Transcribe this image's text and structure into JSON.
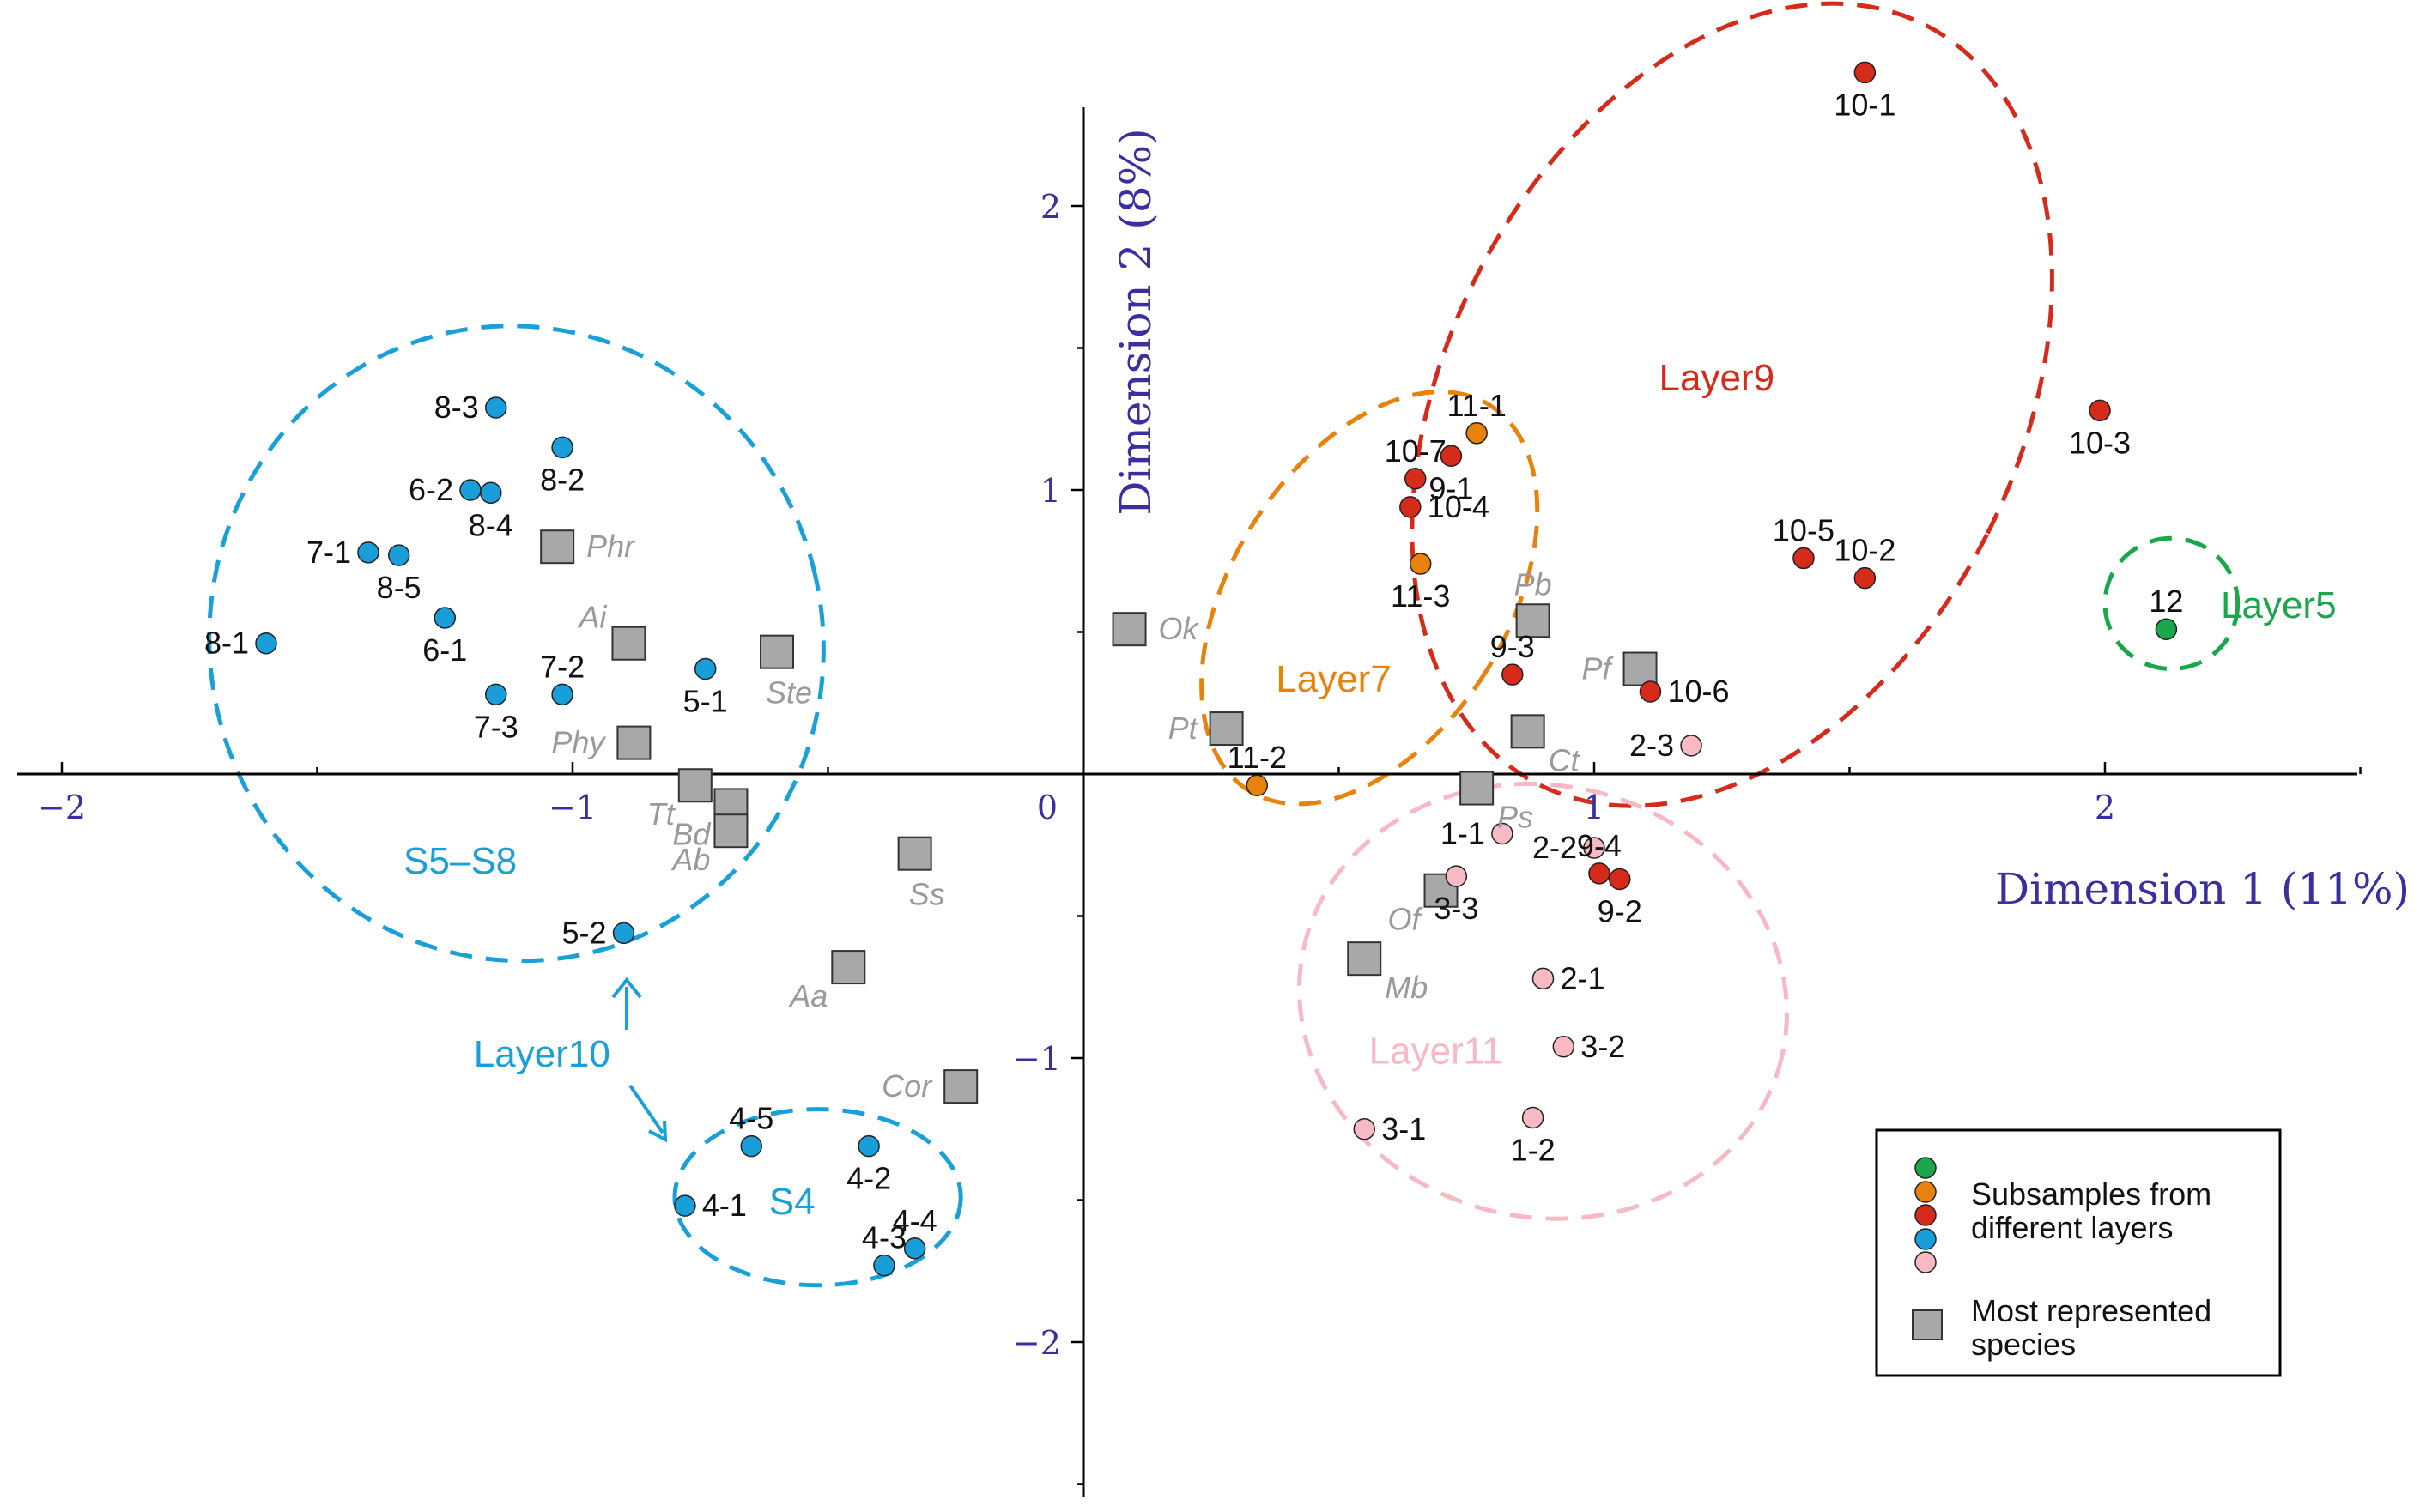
{
  "chart_data": {
    "type": "scatter",
    "title": "",
    "xlabel": "Dimension 1 (11%)",
    "ylabel": "Dimension 2 (8%)",
    "xlim": [
      -2.1,
      2.5
    ],
    "ylim": [
      -2.5,
      2.35
    ],
    "x_ticks": [
      {
        "v": -2,
        "label": "−2"
      },
      {
        "v": -1,
        "label": "−1"
      },
      {
        "v": 0,
        "label": "0"
      },
      {
        "v": 1,
        "label": "1"
      },
      {
        "v": 2,
        "label": "2"
      }
    ],
    "y_ticks": [
      {
        "v": -2,
        "label": "−2"
      },
      {
        "v": -1,
        "label": "−1"
      },
      {
        "v": 1,
        "label": "1"
      },
      {
        "v": 2,
        "label": "2"
      }
    ],
    "colors": {
      "green": "#1aa64a",
      "orange": "#e8820c",
      "red": "#d62a1a",
      "blue": "#1a9ed9",
      "pink": "#f7b9c3",
      "square": "#a8a8a8"
    },
    "subsamples": [
      {
        "id": "8-3",
        "x": -1.15,
        "y": 1.29,
        "layer": "blue",
        "pos": "left"
      },
      {
        "id": "8-2",
        "x": -1.02,
        "y": 1.15,
        "layer": "blue",
        "pos": "below"
      },
      {
        "id": "6-2",
        "x": -1.2,
        "y": 1.0,
        "layer": "blue",
        "pos": "left"
      },
      {
        "id": "8-4",
        "x": -1.16,
        "y": 0.99,
        "layer": "blue",
        "pos": "below"
      },
      {
        "id": "7-1",
        "x": -1.4,
        "y": 0.78,
        "layer": "blue",
        "pos": "left"
      },
      {
        "id": "8-5",
        "x": -1.34,
        "y": 0.77,
        "layer": "blue",
        "pos": "below"
      },
      {
        "id": "6-1",
        "x": -1.25,
        "y": 0.55,
        "layer": "blue",
        "pos": "below"
      },
      {
        "id": "8-1",
        "x": -1.6,
        "y": 0.46,
        "layer": "blue",
        "pos": "left"
      },
      {
        "id": "7-2",
        "x": -1.02,
        "y": 0.28,
        "layer": "blue",
        "pos": "above"
      },
      {
        "id": "7-3",
        "x": -1.15,
        "y": 0.28,
        "layer": "blue",
        "pos": "below"
      },
      {
        "id": "5-1",
        "x": -0.74,
        "y": 0.37,
        "layer": "blue",
        "pos": "below"
      },
      {
        "id": "5-2",
        "x": -0.9,
        "y": -0.56,
        "layer": "blue",
        "pos": "left"
      },
      {
        "id": "4-5",
        "x": -0.65,
        "y": -1.31,
        "layer": "blue",
        "pos": "above"
      },
      {
        "id": "4-2",
        "x": -0.42,
        "y": -1.31,
        "layer": "blue",
        "pos": "below"
      },
      {
        "id": "4-1",
        "x": -0.78,
        "y": -1.52,
        "layer": "blue",
        "pos": "right"
      },
      {
        "id": "4-4",
        "x": -0.33,
        "y": -1.67,
        "layer": "blue",
        "pos": "above"
      },
      {
        "id": "4-3",
        "x": -0.39,
        "y": -1.73,
        "layer": "blue",
        "pos": "above"
      },
      {
        "id": "10-1",
        "x": 1.53,
        "y": 2.47,
        "layer": "red",
        "pos": "below"
      },
      {
        "id": "10-3",
        "x": 1.99,
        "y": 1.28,
        "layer": "red",
        "pos": "below"
      },
      {
        "id": "10-5",
        "x": 1.41,
        "y": 0.76,
        "layer": "red",
        "pos": "above"
      },
      {
        "id": "10-2",
        "x": 1.53,
        "y": 0.69,
        "layer": "red",
        "pos": "above"
      },
      {
        "id": "10-7",
        "x": 0.65,
        "y": 1.04,
        "layer": "red",
        "pos": "above"
      },
      {
        "id": "9-1",
        "x": 0.72,
        "y": 1.12,
        "layer": "red",
        "pos": "below"
      },
      {
        "id": "10-4",
        "x": 0.64,
        "y": 0.94,
        "layer": "red",
        "pos": "right"
      },
      {
        "id": "9-3",
        "x": 0.84,
        "y": 0.35,
        "layer": "red",
        "pos": "above"
      },
      {
        "id": "10-6",
        "x": 1.11,
        "y": 0.29,
        "layer": "red",
        "pos": "right"
      },
      {
        "id": "9-4",
        "x": 1.01,
        "y": -0.35,
        "layer": "red",
        "pos": "above"
      },
      {
        "id": "9-2",
        "x": 1.05,
        "y": -0.37,
        "layer": "red",
        "pos": "below"
      },
      {
        "id": "11-1",
        "x": 0.77,
        "y": 1.2,
        "layer": "orange",
        "pos": "above"
      },
      {
        "id": "11-3",
        "x": 0.66,
        "y": 0.74,
        "layer": "orange",
        "pos": "below"
      },
      {
        "id": "11-2",
        "x": 0.34,
        "y": -0.04,
        "layer": "orange",
        "pos": "above"
      },
      {
        "id": "12",
        "x": 2.12,
        "y": 0.51,
        "layer": "green",
        "pos": "above"
      },
      {
        "id": "2-3",
        "x": 1.19,
        "y": 0.1,
        "layer": "pink",
        "pos": "left"
      },
      {
        "id": "1-1",
        "x": 0.82,
        "y": -0.21,
        "layer": "pink",
        "pos": "left"
      },
      {
        "id": "2-2",
        "x": 1.0,
        "y": -0.26,
        "layer": "pink",
        "pos": "left"
      },
      {
        "id": "3-3",
        "x": 0.73,
        "y": -0.36,
        "layer": "pink",
        "pos": "below"
      },
      {
        "id": "2-1",
        "x": 0.9,
        "y": -0.72,
        "layer": "pink",
        "pos": "right"
      },
      {
        "id": "3-2",
        "x": 0.94,
        "y": -0.96,
        "layer": "pink",
        "pos": "right"
      },
      {
        "id": "3-1",
        "x": 0.55,
        "y": -1.25,
        "layer": "pink",
        "pos": "right"
      },
      {
        "id": "1-2",
        "x": 0.88,
        "y": -1.21,
        "layer": "pink",
        "pos": "below"
      }
    ],
    "species": [
      {
        "id": "Phr",
        "x": -1.03,
        "y": 0.8,
        "pos": "right"
      },
      {
        "id": "Ai",
        "x": -0.89,
        "y": 0.46,
        "pos": "ul"
      },
      {
        "id": "Ste",
        "x": -0.6,
        "y": 0.43,
        "pos": "below"
      },
      {
        "id": "Phy",
        "x": -0.88,
        "y": 0.11,
        "pos": "left"
      },
      {
        "id": "Tt",
        "x": -0.76,
        "y": -0.04,
        "pos": "below-left"
      },
      {
        "id": "Bd",
        "x": -0.69,
        "y": -0.11,
        "pos": "below-left"
      },
      {
        "id": "Ab",
        "x": -0.69,
        "y": -0.2,
        "pos": "below-left"
      },
      {
        "id": "Ss",
        "x": -0.33,
        "y": -0.28,
        "pos": "below"
      },
      {
        "id": "Aa",
        "x": -0.46,
        "y": -0.68,
        "pos": "below-left"
      },
      {
        "id": "Cor",
        "x": -0.24,
        "y": -1.1,
        "pos": "left"
      },
      {
        "id": "Ok",
        "x": 0.09,
        "y": 0.51,
        "pos": "right"
      },
      {
        "id": "Pt",
        "x": 0.28,
        "y": 0.16,
        "pos": "left"
      },
      {
        "id": "Pb",
        "x": 0.88,
        "y": 0.54,
        "pos": "above"
      },
      {
        "id": "Pf",
        "x": 1.09,
        "y": 0.37,
        "pos": "left"
      },
      {
        "id": "Ct",
        "x": 0.87,
        "y": 0.15,
        "pos": "below-right"
      },
      {
        "id": "Ps",
        "x": 0.77,
        "y": -0.05,
        "pos": "below-right"
      },
      {
        "id": "Of",
        "x": 0.7,
        "y": -0.41,
        "pos": "below-left"
      },
      {
        "id": "Mb",
        "x": 0.55,
        "y": -0.65,
        "pos": "below-right"
      }
    ],
    "groups": [
      {
        "name": "S5–S8",
        "color": "#1aa0d8",
        "cx": -1.11,
        "cy": 0.46,
        "rx": 0.6,
        "ry": 1.12,
        "rot": -14,
        "lx": -1.22,
        "ly": -0.35
      },
      {
        "name": "S4",
        "color": "#1aa0d8",
        "cx": -0.52,
        "cy": -1.49,
        "rx": 0.28,
        "ry": 0.31,
        "rot": 0,
        "lx": -0.57,
        "ly": -1.55
      },
      {
        "name": "Layer7",
        "color": "#e8820c",
        "cx": 0.56,
        "cy": 0.62,
        "rx": 0.27,
        "ry": 0.8,
        "rot": 32,
        "lx": 0.49,
        "ly": 0.29
      },
      {
        "name": "Layer9",
        "color": "#d62a1a",
        "cx": 1.27,
        "cy": 1.3,
        "rx": 0.56,
        "ry": 1.5,
        "rot": 27,
        "lx": 1.24,
        "ly": 1.35
      },
      {
        "name": "Layer5",
        "color": "#1aa64a",
        "cx": 2.13,
        "cy": 0.6,
        "rx": 0.13,
        "ry": 0.23,
        "rot": 0,
        "lx": 2.34,
        "ly": 0.55
      },
      {
        "name": "Layer11",
        "color": "#f7b9c3",
        "cx": 0.9,
        "cy": -0.8,
        "rx": 0.48,
        "ry": 0.76,
        "rot": 13,
        "lx": 0.69,
        "ly": -1.02
      }
    ],
    "layer10": {
      "label": "Layer10",
      "color": "#1aa0d8",
      "lx": -1.06,
      "ly": -1.03
    },
    "legend": {
      "subsamples_label_line1": "Subsamples from",
      "subsamples_label_line2": "different layers",
      "species_label_line1": "Most represented",
      "species_label_line2": "species"
    }
  }
}
